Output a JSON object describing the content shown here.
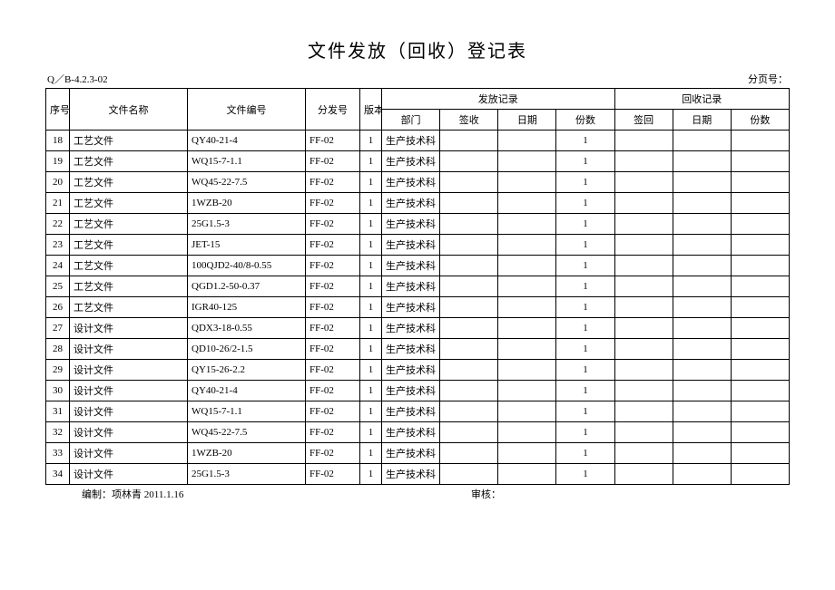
{
  "title": "文件发放（回收）登记表",
  "top_left": "Q／B-4.2.3-02",
  "top_right": "分页号：",
  "footer_left": "编制：项林青 2011.1.16",
  "footer_right": "审核：",
  "header": {
    "seq": "序号",
    "docname": "文件名称",
    "docno": "文件编号",
    "issueno": "分发号",
    "ver": "版本",
    "issue_group": "发放记录",
    "recycle_group": "回收记录",
    "dept": "部门",
    "sign_recv": "签收",
    "date": "日期",
    "qty": "份数",
    "sign_ret": "签回",
    "rdate": "日期",
    "rqty": "份数"
  },
  "rows": [
    {
      "seq": "18",
      "docname": "工艺文件",
      "docno": "QY40-21-4",
      "issueno": "FF-02",
      "ver": "1",
      "dept": "生产技术科",
      "sign": "",
      "date": "",
      "qty": "1",
      "rsign": "",
      "rdate": "",
      "rqty": ""
    },
    {
      "seq": "19",
      "docname": "工艺文件",
      "docno": "WQ15-7-1.1",
      "issueno": "FF-02",
      "ver": "1",
      "dept": "生产技术科",
      "sign": "",
      "date": "",
      "qty": "1",
      "rsign": "",
      "rdate": "",
      "rqty": ""
    },
    {
      "seq": "20",
      "docname": "工艺文件",
      "docno": "WQ45-22-7.5",
      "issueno": "FF-02",
      "ver": "1",
      "dept": "生产技术科",
      "sign": "",
      "date": "",
      "qty": "1",
      "rsign": "",
      "rdate": "",
      "rqty": ""
    },
    {
      "seq": "21",
      "docname": "工艺文件",
      "docno": "1WZB-20",
      "issueno": "FF-02",
      "ver": "1",
      "dept": "生产技术科",
      "sign": "",
      "date": "",
      "qty": "1",
      "rsign": "",
      "rdate": "",
      "rqty": ""
    },
    {
      "seq": "22",
      "docname": "工艺文件",
      "docno": "25G1.5-3",
      "issueno": "FF-02",
      "ver": "1",
      "dept": "生产技术科",
      "sign": "",
      "date": "",
      "qty": "1",
      "rsign": "",
      "rdate": "",
      "rqty": ""
    },
    {
      "seq": "23",
      "docname": "工艺文件",
      "docno": "JET-15",
      "issueno": "FF-02",
      "ver": "1",
      "dept": "生产技术科",
      "sign": "",
      "date": "",
      "qty": "1",
      "rsign": "",
      "rdate": "",
      "rqty": ""
    },
    {
      "seq": "24",
      "docname": "工艺文件",
      "docno": "100QJD2-40/8-0.55",
      "issueno": "FF-02",
      "ver": "1",
      "dept": "生产技术科",
      "sign": "",
      "date": "",
      "qty": "1",
      "rsign": "",
      "rdate": "",
      "rqty": ""
    },
    {
      "seq": "25",
      "docname": "工艺文件",
      "docno": "QGD1.2-50-0.37",
      "issueno": "FF-02",
      "ver": "1",
      "dept": "生产技术科",
      "sign": "",
      "date": "",
      "qty": "1",
      "rsign": "",
      "rdate": "",
      "rqty": ""
    },
    {
      "seq": "26",
      "docname": "工艺文件",
      "docno": "IGR40-125",
      "issueno": "FF-02",
      "ver": "1",
      "dept": "生产技术科",
      "sign": "",
      "date": "",
      "qty": "1",
      "rsign": "",
      "rdate": "",
      "rqty": ""
    },
    {
      "seq": "27",
      "docname": "设计文件",
      "docno": "QDX3-18-0.55",
      "issueno": "FF-02",
      "ver": "1",
      "dept": "生产技术科",
      "sign": "",
      "date": "",
      "qty": "1",
      "rsign": "",
      "rdate": "",
      "rqty": ""
    },
    {
      "seq": "28",
      "docname": "设计文件",
      "docno": "QD10-26/2-1.5",
      "issueno": "FF-02",
      "ver": "1",
      "dept": "生产技术科",
      "sign": "",
      "date": "",
      "qty": "1",
      "rsign": "",
      "rdate": "",
      "rqty": ""
    },
    {
      "seq": "29",
      "docname": "设计文件",
      "docno": "QY15-26-2.2",
      "issueno": "FF-02",
      "ver": "1",
      "dept": "生产技术科",
      "sign": "",
      "date": "",
      "qty": "1",
      "rsign": "",
      "rdate": "",
      "rqty": ""
    },
    {
      "seq": "30",
      "docname": "设计文件",
      "docno": "QY40-21-4",
      "issueno": "FF-02",
      "ver": "1",
      "dept": "生产技术科",
      "sign": "",
      "date": "",
      "qty": "1",
      "rsign": "",
      "rdate": "",
      "rqty": ""
    },
    {
      "seq": "31",
      "docname": "设计文件",
      "docno": "WQ15-7-1.1",
      "issueno": "FF-02",
      "ver": "1",
      "dept": "生产技术科",
      "sign": "",
      "date": "",
      "qty": "1",
      "rsign": "",
      "rdate": "",
      "rqty": ""
    },
    {
      "seq": "32",
      "docname": "设计文件",
      "docno": "WQ45-22-7.5",
      "issueno": "FF-02",
      "ver": "1",
      "dept": "生产技术科",
      "sign": "",
      "date": "",
      "qty": "1",
      "rsign": "",
      "rdate": "",
      "rqty": ""
    },
    {
      "seq": "33",
      "docname": "设计文件",
      "docno": "1WZB-20",
      "issueno": "FF-02",
      "ver": "1",
      "dept": "生产技术科",
      "sign": "",
      "date": "",
      "qty": "1",
      "rsign": "",
      "rdate": "",
      "rqty": ""
    },
    {
      "seq": "34",
      "docname": "设计文件",
      "docno": "25G1.5-3",
      "issueno": "FF-02",
      "ver": "1",
      "dept": "生产技术科",
      "sign": "",
      "date": "",
      "qty": "1",
      "rsign": "",
      "rdate": "",
      "rqty": ""
    }
  ]
}
